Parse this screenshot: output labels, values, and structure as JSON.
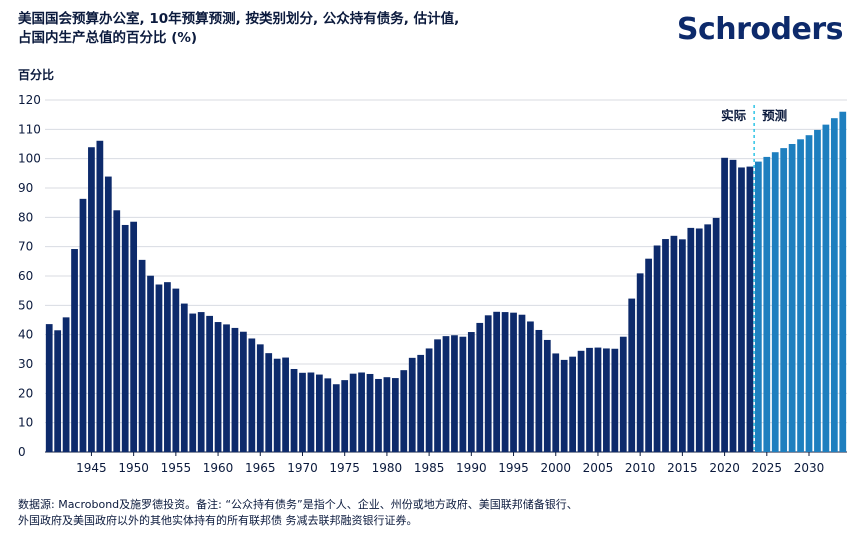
{
  "header": {
    "title_line1": "美国国会预算办公室, 10年预算预测, 按类别划分, 公众持有债务, 估计值,",
    "title_line2": "占国内生产总值的百分比 (%)",
    "brand": "Schroders"
  },
  "footer": {
    "source_line1": "数据源: Macrobond及施罗德投资。备注: “公众持有债务”是指个人、企业、州份或地方政府、美国联邦储备银行、",
    "source_line2": "外国政府及美国政府以外的其他实体持有的所有联邦债 务减去联邦融资银行证券。"
  },
  "chart_data": {
    "type": "bar",
    "ylabel": "百分比",
    "ylim": [
      0,
      120
    ],
    "ytick_step": 10,
    "xlim": [
      1940,
      2034
    ],
    "xticks": [
      1945,
      1950,
      1955,
      1960,
      1965,
      1970,
      1975,
      1980,
      1985,
      1990,
      1995,
      2000,
      2005,
      2010,
      2015,
      2020,
      2025,
      2030
    ],
    "grid": true,
    "divider_year": 2023.5,
    "annotations": {
      "actual": "实际",
      "forecast": "预测"
    },
    "colors": {
      "actual": "#0d2a6b",
      "forecast": "#1e7fbf",
      "divider": "#2ec4e6",
      "grid": "#d8dbe2"
    },
    "series": [
      {
        "name": "实际",
        "x": [
          1940,
          1941,
          1942,
          1943,
          1944,
          1945,
          1946,
          1947,
          1948,
          1949,
          1950,
          1951,
          1952,
          1953,
          1954,
          1955,
          1956,
          1957,
          1958,
          1959,
          1960,
          1961,
          1962,
          1963,
          1964,
          1965,
          1966,
          1967,
          1968,
          1969,
          1970,
          1971,
          1972,
          1973,
          1974,
          1975,
          1976,
          1977,
          1978,
          1979,
          1980,
          1981,
          1982,
          1983,
          1984,
          1985,
          1986,
          1987,
          1988,
          1989,
          1990,
          1991,
          1992,
          1993,
          1994,
          1995,
          1996,
          1997,
          1998,
          1999,
          2000,
          2001,
          2002,
          2003,
          2004,
          2005,
          2006,
          2007,
          2008,
          2009,
          2010,
          2011,
          2012,
          2013,
          2014,
          2015,
          2016,
          2017,
          2018,
          2019,
          2020,
          2021,
          2022,
          2023
        ],
        "values": [
          43.6,
          41.5,
          45.9,
          69.2,
          86.3,
          103.9,
          106.1,
          93.9,
          82.4,
          77.4,
          78.5,
          65.5,
          60.1,
          57.1,
          57.9,
          55.7,
          50.6,
          47.2,
          47.7,
          46.4,
          44.3,
          43.5,
          42.3,
          41.0,
          38.7,
          36.7,
          33.7,
          31.8,
          32.2,
          28.3,
          27.0,
          27.1,
          26.4,
          25.1,
          23.1,
          24.5,
          26.7,
          27.1,
          26.6,
          24.9,
          25.5,
          25.2,
          27.9,
          32.1,
          33.1,
          35.3,
          38.4,
          39.5,
          39.8,
          39.3,
          40.9,
          44.0,
          46.6,
          47.8,
          47.7,
          47.5,
          46.8,
          44.5,
          41.6,
          38.2,
          33.6,
          31.4,
          32.5,
          34.5,
          35.5,
          35.6,
          35.3,
          35.2,
          39.3,
          52.3,
          60.9,
          65.9,
          70.4,
          72.6,
          73.7,
          72.5,
          76.4,
          76.2,
          77.6,
          79.8,
          100.3,
          99.6,
          97.0,
          97.3
        ]
      },
      {
        "name": "预测",
        "x": [
          2024,
          2025,
          2026,
          2027,
          2028,
          2029,
          2030,
          2031,
          2032,
          2033,
          2034
        ],
        "values": [
          99.0,
          100.6,
          102.2,
          103.6,
          105.0,
          106.6,
          108.0,
          109.8,
          111.6,
          113.8,
          116.0
        ]
      }
    ]
  }
}
